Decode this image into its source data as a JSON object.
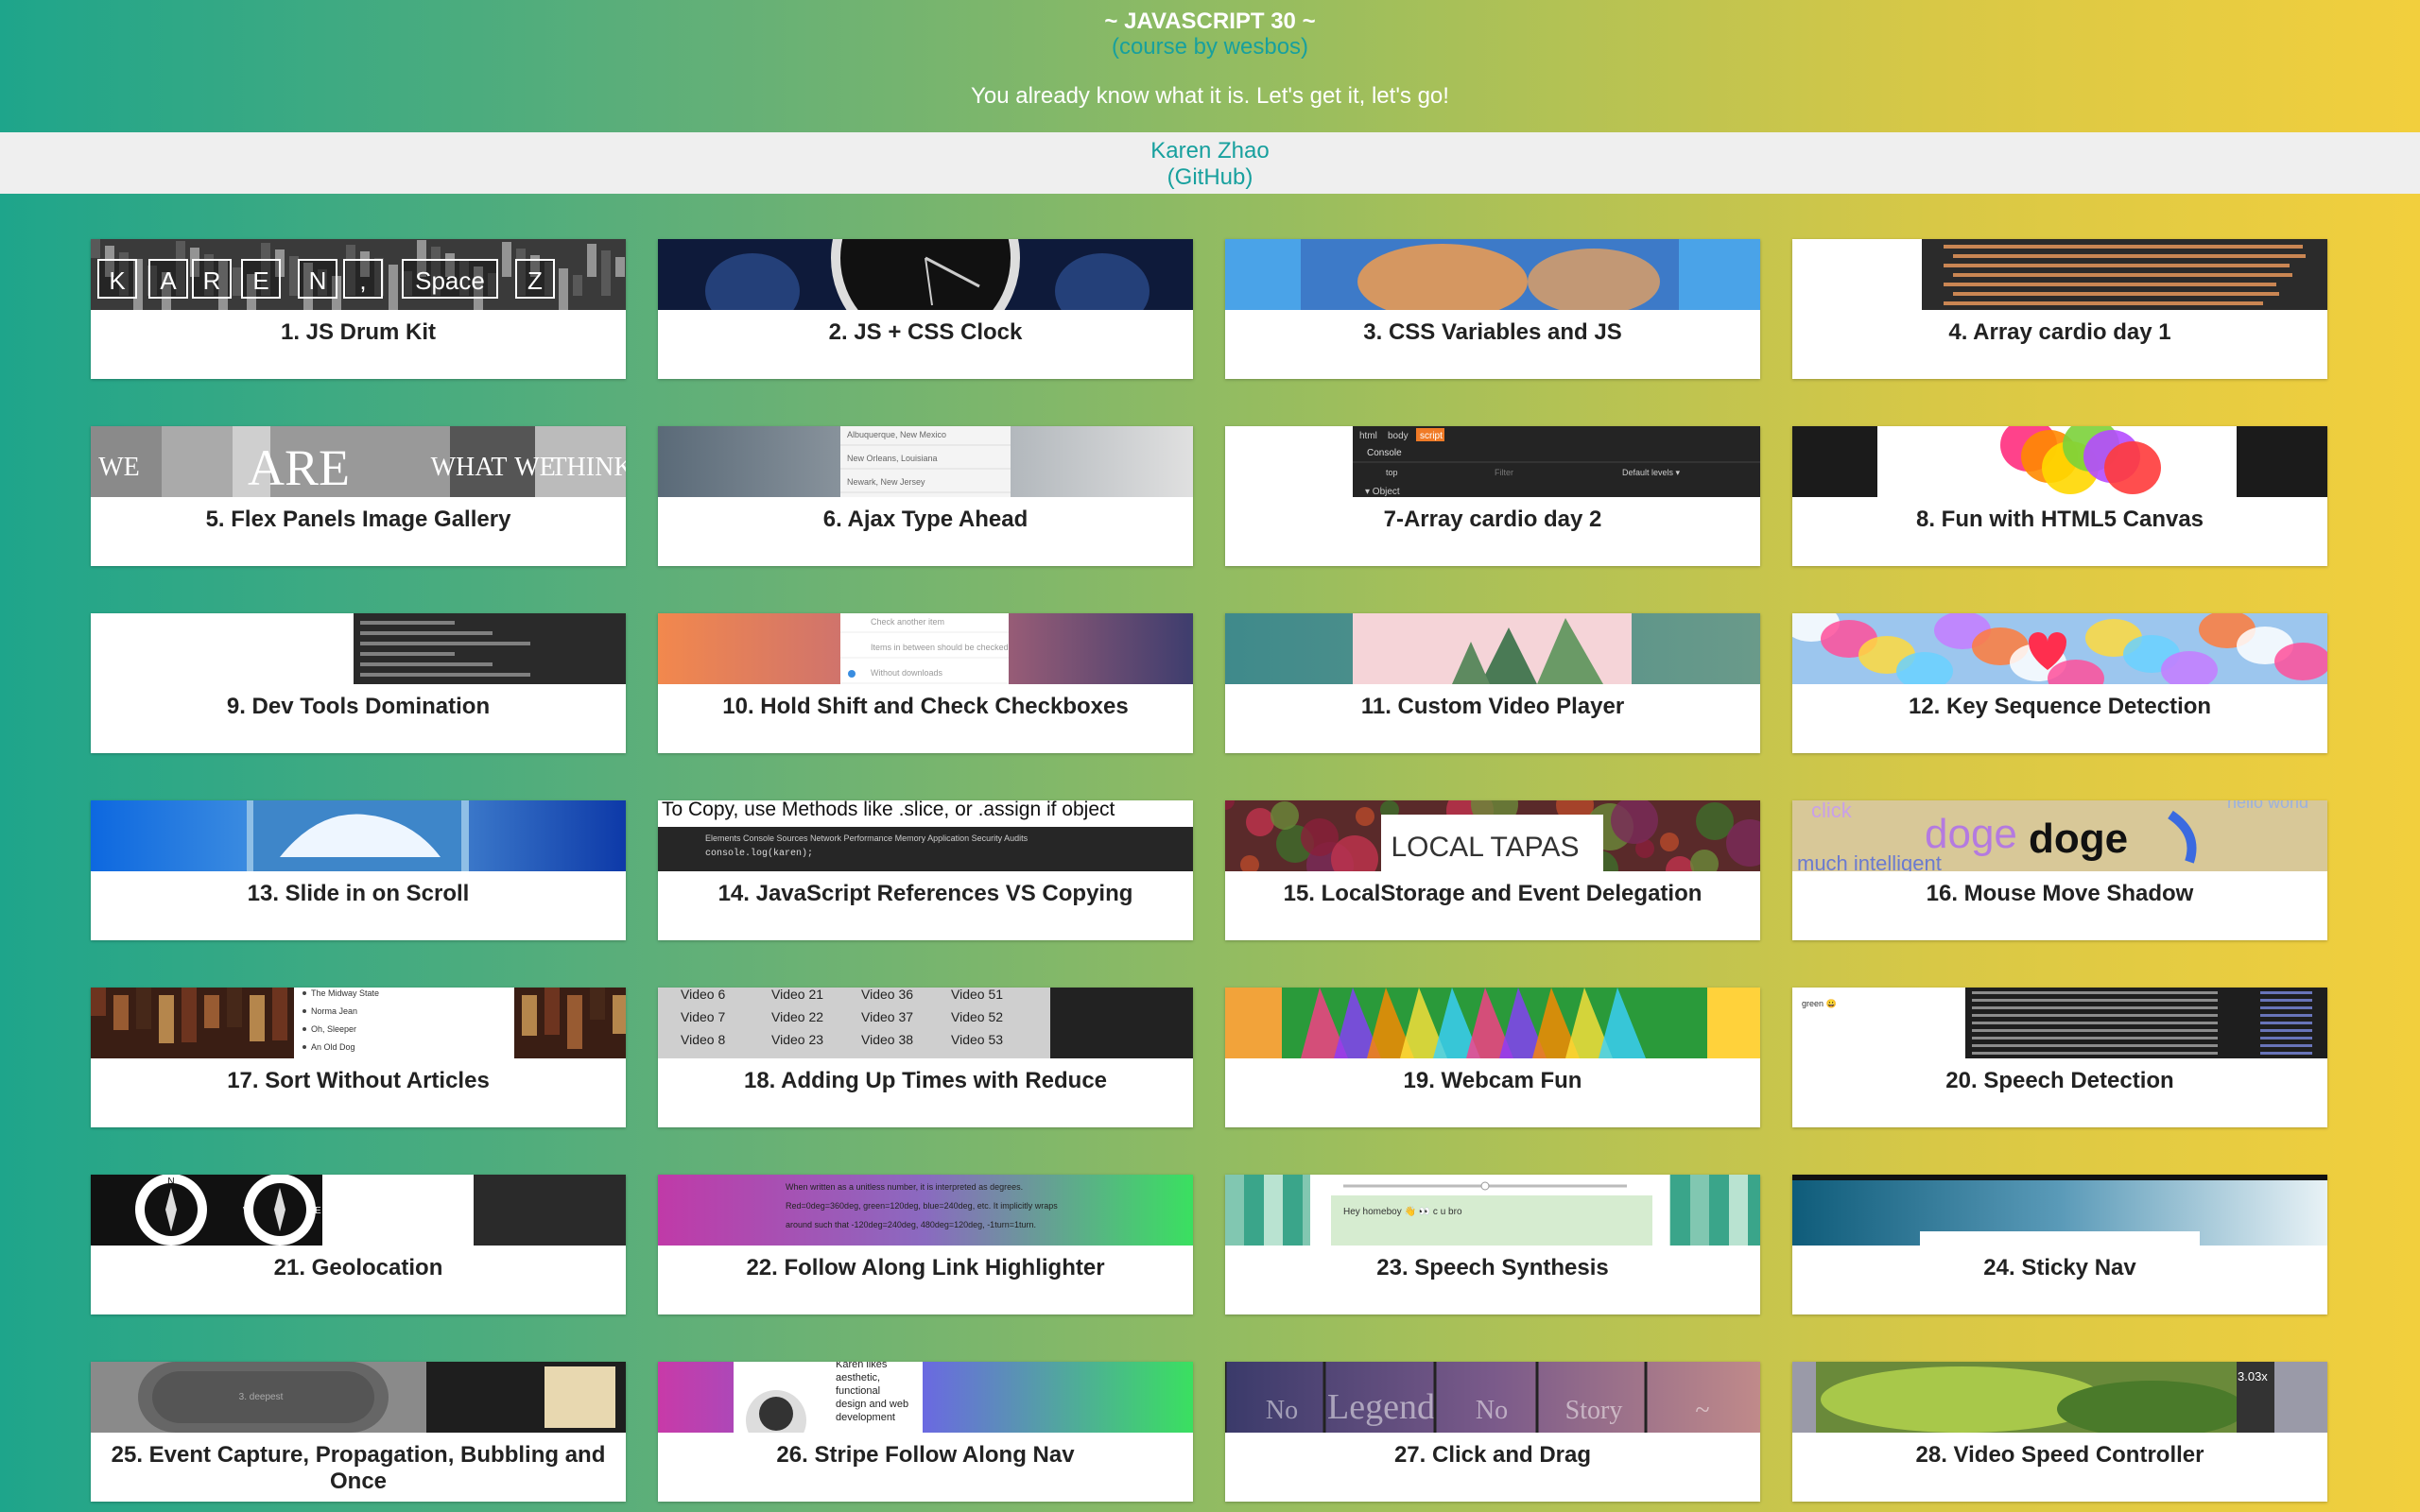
{
  "header": {
    "title": "~ JAVASCRIPT 30 ~",
    "course_link": "(course by wesbos)",
    "tagline": "You already know what it is. Let's get it, let's go!"
  },
  "author": {
    "name": "Karen Zhao",
    "github": "(GitHub)"
  },
  "projects": [
    {
      "label": "1. JS Drum Kit",
      "thumb": "drum-kit-keys",
      "thumb_text": [
        "K",
        "A",
        "R",
        "E",
        "N",
        ",",
        "Space",
        "Z"
      ]
    },
    {
      "label": "2. JS + CSS Clock",
      "thumb": "clock-face"
    },
    {
      "label": "3. CSS Variables and JS",
      "thumb": "blurred-dog-photo"
    },
    {
      "label": "4. Array cardio day 1",
      "thumb": "code-array"
    },
    {
      "label": "5. Flex Panels Image Gallery",
      "thumb": "flex-panels",
      "thumb_text": [
        "WE",
        "ARE",
        "WHAT",
        "WE",
        "THINK"
      ]
    },
    {
      "label": "6. Ajax Type Ahead",
      "thumb": "city-list",
      "thumb_text": [
        "Albuquerque, New Mexico",
        "New Orleans, Louisiana",
        "Newark, New Jersey"
      ]
    },
    {
      "label": "7-Array cardio day 2",
      "thumb": "devtools-console",
      "thumb_text": [
        "html",
        "body",
        "script",
        "Console",
        "top",
        "Filter",
        "Default levels ▾",
        "▾ Object"
      ]
    },
    {
      "label": "8. Fun with HTML5 Canvas",
      "thumb": "rainbow-canvas"
    },
    {
      "label": "9. Dev Tools Domination",
      "thumb": "devtools-dark"
    },
    {
      "label": "10. Hold Shift and Check Checkboxes",
      "thumb": "checkbox-list",
      "thumb_text": [
        "Check another item",
        "Items in between should be checked",
        "Without downloads"
      ]
    },
    {
      "label": "11. Custom Video Player",
      "thumb": "forest-video"
    },
    {
      "label": "12. Key Sequence Detection",
      "thumb": "unicorn-collage"
    },
    {
      "label": "13. Slide in on Scroll",
      "thumb": "ice-photo"
    },
    {
      "label": "14. JavaScript References VS Copying",
      "thumb": "references-code",
      "thumb_text": [
        "To Copy, use Methods like .slice, or .assign if object",
        "Elements   Console   Sources   Network   Performance   Memory   Application   Security   Audits",
        "console.log(karen);"
      ]
    },
    {
      "label": "15. LocalStorage and Event Delegation",
      "thumb": "tapas-photo",
      "thumb_text": [
        "LOCAL TAPAS"
      ]
    },
    {
      "label": "16. Mouse Move Shadow",
      "thumb": "doge-shadow",
      "thumb_text": [
        "click",
        "doge",
        "doge",
        "much intelligent",
        "hello world"
      ]
    },
    {
      "label": "17. Sort Without Articles",
      "thumb": "library-list",
      "thumb_text": [
        "The Midway State",
        "Norma Jean",
        "Oh, Sleeper",
        "An Old Dog"
      ]
    },
    {
      "label": "18. Adding Up Times with Reduce",
      "thumb": "video-list",
      "thumb_text": [
        "Video 6",
        "Video 21",
        "Video 36",
        "Video 51",
        "Video 7",
        "Video 22",
        "Video 37",
        "Video 52",
        "Video 8",
        "Video 23",
        "Video 38",
        "Video 53"
      ]
    },
    {
      "label": "19. Webcam Fun",
      "thumb": "colorful-webcam"
    },
    {
      "label": "20. Speech Detection",
      "thumb": "speech-console",
      "thumb_text": [
        "green 😀"
      ]
    },
    {
      "label": "21. Geolocation",
      "thumb": "compass",
      "thumb_text": [
        "N",
        "W",
        "E",
        "S"
      ]
    },
    {
      "label": "22. Follow Along Link Highlighter",
      "thumb": "gradient-text",
      "thumb_text": [
        "When written as a unitless number, it is interpreted as degrees.",
        "Red=0deg=360deg, green=120deg, blue=240deg, etc. It implicitly wraps",
        "around such that -120deg=240deg, 480deg=120deg, -1turn=1turn."
      ]
    },
    {
      "label": "23. Speech Synthesis",
      "thumb": "speech-ui",
      "thumb_text": [
        "Hey homeboy 👋 👀 c u bro"
      ]
    },
    {
      "label": "24. Sticky Nav",
      "thumb": "sticky-nav"
    },
    {
      "label": "25. Event Capture, Propagation, Bubbling and Once",
      "thumb": "nested-divs",
      "thumb_text": [
        "3. deepest"
      ]
    },
    {
      "label": "26. Stripe Follow Along Nav",
      "thumb": "stripe-nav",
      "thumb_text": [
        "Karen likes",
        "aesthetic,",
        "functional",
        "design and web",
        "development"
      ]
    },
    {
      "label": "27. Click and Drag",
      "thumb": "drag-items",
      "thumb_text": [
        "No",
        "Legend",
        "No",
        "Story",
        "~"
      ]
    },
    {
      "label": "28. Video Speed Controller",
      "thumb": "video-speed",
      "thumb_text": [
        "3.03x"
      ]
    }
  ]
}
